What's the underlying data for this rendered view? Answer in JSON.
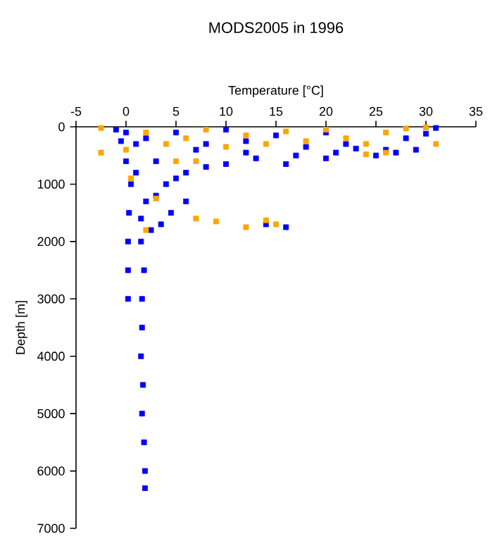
{
  "chart_data": {
    "type": "scatter",
    "title": "MODS2005 in 1996",
    "xlabel": "Temperature [°C]",
    "ylabel": "Depth [m]",
    "xlim": [
      -5,
      35
    ],
    "xticks": [
      -5,
      0,
      5,
      10,
      15,
      20,
      25,
      30,
      35
    ],
    "ylim": [
      7000,
      0
    ],
    "yticks": [
      0,
      1000,
      2000,
      3000,
      4000,
      5000,
      6000,
      7000
    ],
    "grid": false,
    "marker": "square",
    "series": [
      {
        "color": "#0000ff",
        "x": [
          -1,
          0,
          2,
          5,
          8,
          10,
          12,
          15,
          18,
          20,
          22,
          23,
          26,
          28,
          30,
          31,
          29,
          27,
          25,
          21,
          17,
          13,
          10,
          8,
          6,
          5,
          4,
          3,
          2,
          4.5,
          3.5,
          2.5,
          1.5,
          0.5,
          0.3,
          0.2,
          0.2,
          0.2,
          1.5,
          1.8,
          1.6,
          1.6,
          1.5,
          1.7,
          1.6,
          1.8,
          1.9,
          1.9,
          1,
          -0.5,
          16,
          14,
          6,
          3,
          16,
          20,
          12,
          7,
          1,
          0
        ],
        "values": [
          50,
          100,
          200,
          100,
          300,
          50,
          250,
          150,
          350,
          100,
          300,
          380,
          400,
          200,
          120,
          20,
          400,
          450,
          500,
          450,
          500,
          550,
          650,
          700,
          800,
          900,
          1000,
          1200,
          1300,
          1500,
          1700,
          1800,
          1600,
          1000,
          1500,
          2000,
          2500,
          3000,
          2000,
          2500,
          3000,
          3500,
          4000,
          4500,
          5000,
          5500,
          6000,
          6300,
          800,
          250,
          1750,
          1700,
          1300,
          600,
          650,
          550,
          450,
          400,
          300,
          600
        ]
      },
      {
        "color": "#ffa500",
        "x": [
          -2.5,
          -2.5,
          0,
          2,
          4,
          6,
          8,
          10,
          12,
          14,
          16,
          18,
          20,
          22,
          24,
          26,
          28,
          30,
          31,
          26,
          24,
          7,
          5,
          3,
          7,
          9,
          12,
          14,
          15,
          2,
          0.5
        ],
        "values": [
          20,
          450,
          400,
          100,
          300,
          200,
          50,
          350,
          150,
          300,
          80,
          250,
          50,
          200,
          300,
          100,
          30,
          10,
          300,
          450,
          480,
          600,
          600,
          1250,
          1600,
          1650,
          1750,
          1630,
          1700,
          1800,
          900
        ]
      }
    ]
  }
}
